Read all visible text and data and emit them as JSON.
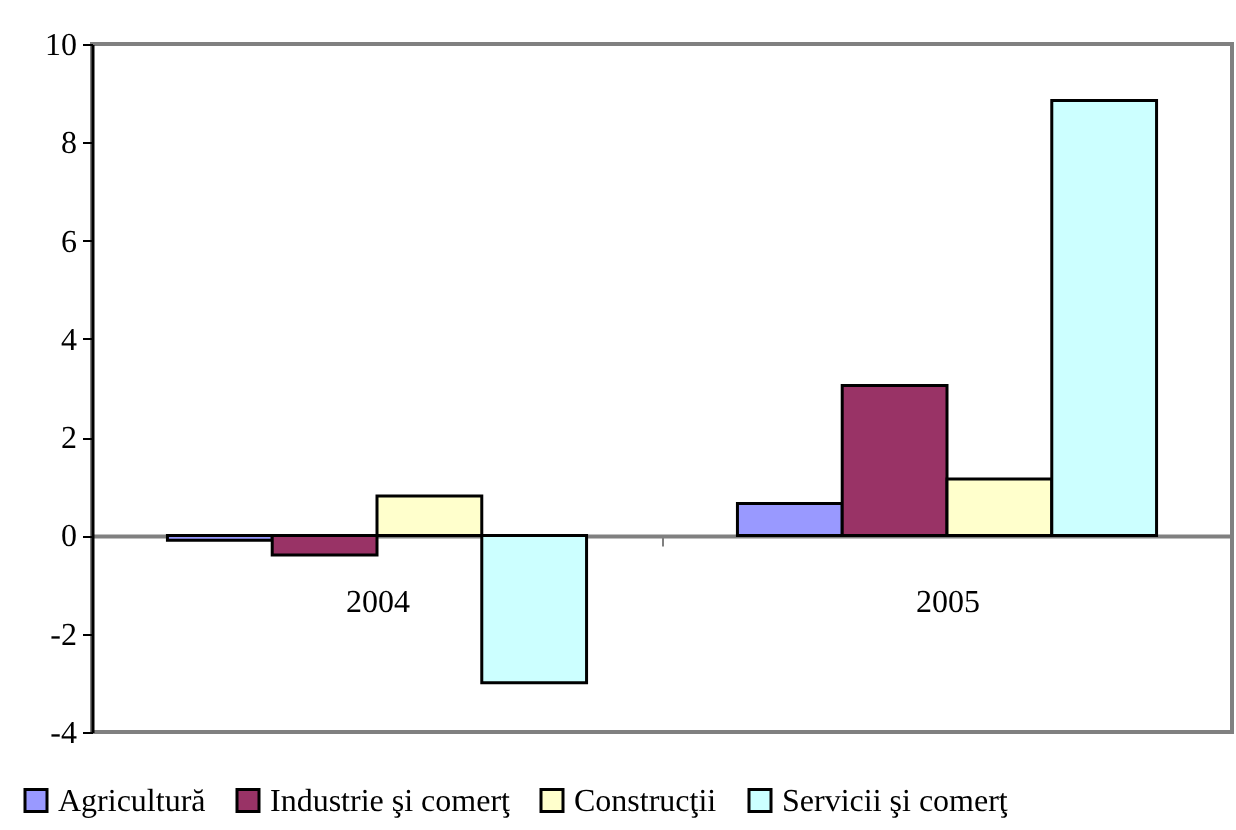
{
  "chart_data": {
    "type": "bar",
    "categories": [
      "2004",
      "2005"
    ],
    "series": [
      {
        "name": "Agricultură",
        "color": "#9999ff",
        "values": [
          -0.1,
          0.65
        ]
      },
      {
        "name": "Industrie şi comerţ",
        "color": "#993366",
        "values": [
          -0.4,
          3.05
        ]
      },
      {
        "name": "Construcţii",
        "color": "#ffffcc",
        "values": [
          0.8,
          1.15
        ]
      },
      {
        "name": "Servicii şi comerţ",
        "color": "#ccffff",
        "values": [
          -3.0,
          8.85
        ]
      }
    ],
    "ylim": [
      -4,
      10
    ],
    "yticks": [
      -4,
      -2,
      0,
      2,
      4,
      6,
      8,
      10
    ],
    "legend": "bottom"
  }
}
